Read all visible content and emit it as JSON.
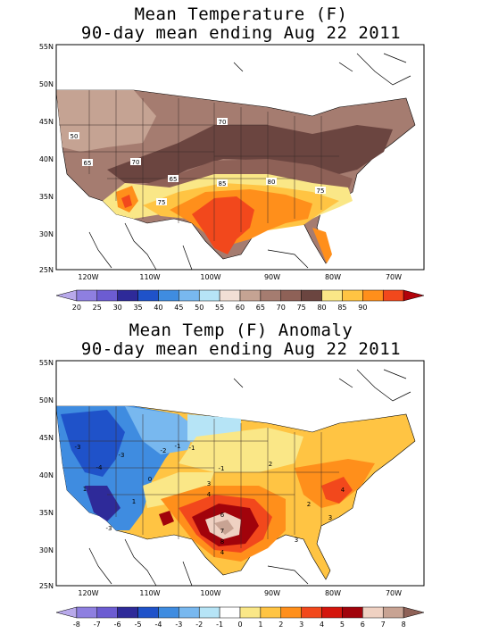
{
  "maps": [
    {
      "title_line1": "Mean Temperature (F)",
      "title_line2": "90-day mean ending Aug 22 2011",
      "lat_labels": [
        "55N",
        "50N",
        "45N",
        "40N",
        "35N",
        "30N",
        "25N"
      ],
      "lon_labels": [
        "120W",
        "110W",
        "100W",
        "90W",
        "80W",
        "70W"
      ],
      "legend_values": [
        "20",
        "25",
        "30",
        "35",
        "40",
        "45",
        "50",
        "55",
        "60",
        "65",
        "70",
        "75",
        "80",
        "85",
        "90"
      ],
      "legend_colors": [
        "#b8a9ea",
        "#8e7fe0",
        "#6c5cd2",
        "#2e2a99",
        "#1f52c9",
        "#3f8ce0",
        "#78b8ef",
        "#b6e4f6",
        "#f1dfd5",
        "#c5a393",
        "#a57c70",
        "#8e6157",
        "#6b4540",
        "#fae787",
        "#ffc443",
        "#ff8f1b",
        "#f2481c",
        "#b1030b"
      ],
      "contour_labels": [
        "50",
        "65",
        "70",
        "70",
        "65",
        "75",
        "85",
        "80",
        "75"
      ]
    },
    {
      "title_line1": "Mean Temp (F) Anomaly",
      "title_line2": "90-day mean ending Aug 22 2011",
      "lat_labels": [
        "55N",
        "50N",
        "45N",
        "40N",
        "35N",
        "30N",
        "25N"
      ],
      "lon_labels": [
        "120W",
        "110W",
        "100W",
        "90W",
        "80W",
        "70W"
      ],
      "legend_values": [
        "-8",
        "-7",
        "-6",
        "-5",
        "-4",
        "-3",
        "-2",
        "-1",
        "0",
        "1",
        "2",
        "3",
        "4",
        "5",
        "6",
        "7",
        "8"
      ],
      "legend_colors": [
        "#b8a9ea",
        "#8e7fe0",
        "#6c5cd2",
        "#2e2a99",
        "#1f52c9",
        "#3f8ce0",
        "#78b8ef",
        "#b6e4f6",
        "#ffffff",
        "#fae787",
        "#ffc443",
        "#ff8f1b",
        "#f2481c",
        "#d4150c",
        "#a1030b",
        "#efd1c2",
        "#c8a393",
        "#8e6157"
      ],
      "contour_labels": [
        "-3",
        "-3",
        "-4",
        "-3",
        "-2",
        "-1",
        "0",
        "-1",
        "1",
        "2",
        "3",
        "4",
        "6",
        "7",
        "8",
        "4",
        "2",
        "3",
        "3",
        "4",
        "1",
        "-1"
      ]
    }
  ],
  "colors": {
    "cool_brown": "#a57c70",
    "pale_brown": "#c5a393",
    "dark_brown": "#6b4540",
    "yellow": "#fae787",
    "gold": "#ffc443",
    "orange": "#ff8f1b",
    "red": "#f2481c",
    "deep_blue": "#1f52c9",
    "light_blue": "#78b8ef"
  }
}
